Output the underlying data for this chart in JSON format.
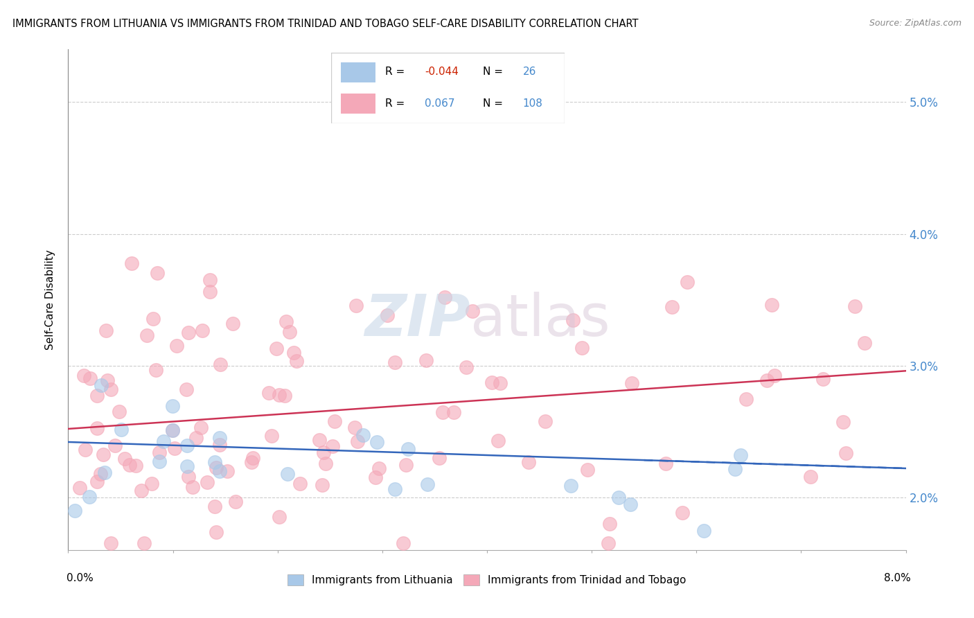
{
  "title": "IMMIGRANTS FROM LITHUANIA VS IMMIGRANTS FROM TRINIDAD AND TOBAGO SELF-CARE DISABILITY CORRELATION CHART",
  "source": "Source: ZipAtlas.com",
  "ylabel": "Self-Care Disability",
  "xlim": [
    0.0,
    8.0
  ],
  "ylim": [
    1.6,
    5.4
  ],
  "yticks": [
    2.0,
    3.0,
    4.0,
    5.0
  ],
  "color_lithuania": "#a8c8e8",
  "color_tt": "#f4a8b8",
  "line_color_lithuania": "#3366bb",
  "line_color_tt": "#cc3355",
  "legend_label1": "Immigrants from Lithuania",
  "legend_label2": "Immigrants from Trinidad and Tobago",
  "lith_intercept": 2.42,
  "lith_slope": -0.025,
  "tt_intercept": 2.52,
  "tt_slope": 0.055
}
